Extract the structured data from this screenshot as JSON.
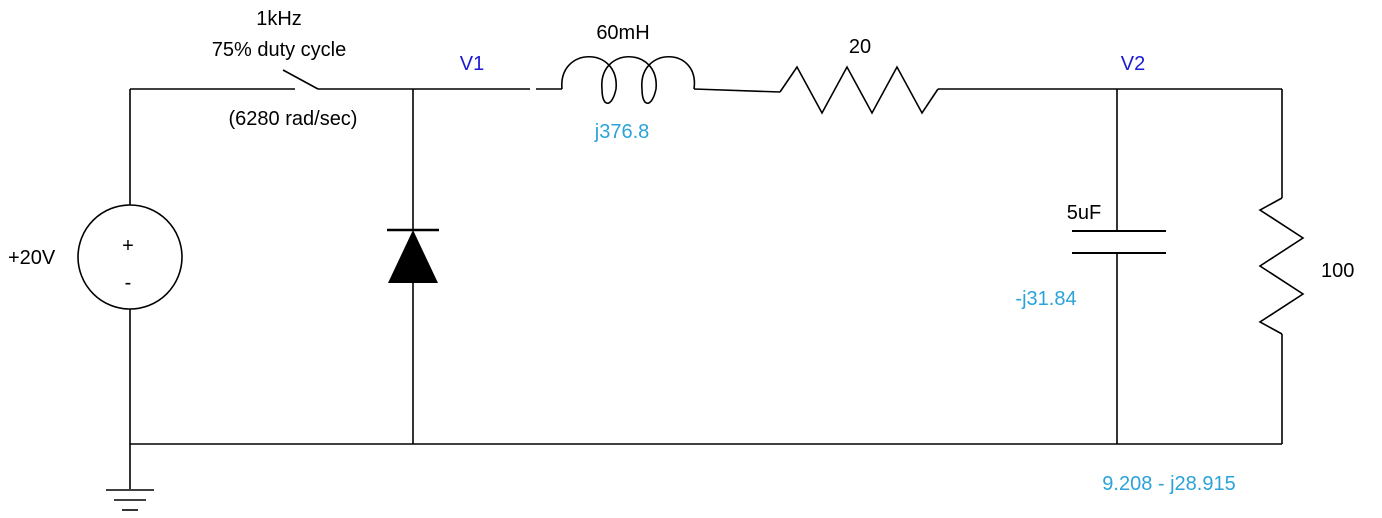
{
  "source": {
    "label": "+20V",
    "plus": "+",
    "minus": "-"
  },
  "switch": {
    "freq": "1kHz",
    "duty": "75% duty cycle",
    "omega": "(6280 rad/sec)"
  },
  "nodes": {
    "v1": "V1",
    "v2": "V2"
  },
  "inductor": {
    "value": "60mH",
    "impedance": "j376.8"
  },
  "series_resistor": {
    "value": "20"
  },
  "capacitor": {
    "value": "5uF",
    "impedance": "-j31.84"
  },
  "load_resistor": {
    "value": "100"
  },
  "parallel_impedance": "9.208 - j28.915",
  "colors": {
    "wire": "#000000",
    "node_label": "#1a1ad6",
    "impedance": "#2ba3d9"
  }
}
